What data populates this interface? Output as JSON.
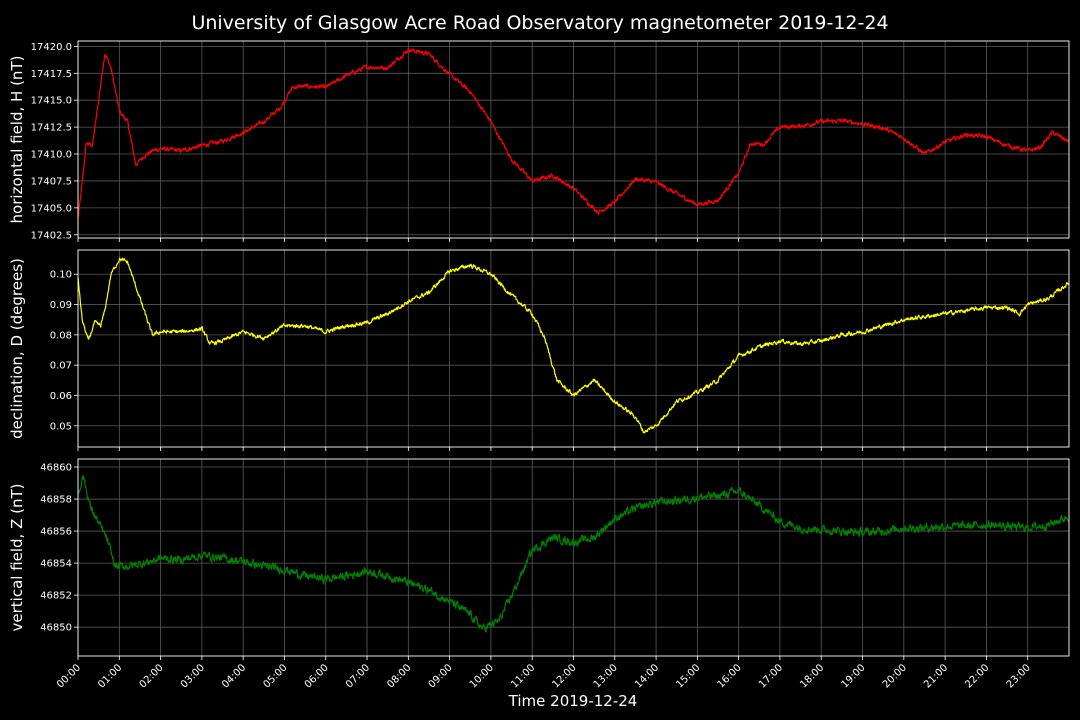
{
  "chart_data": {
    "type": "line",
    "title": "University of Glasgow Acre Road Observatory magnetometer 2019-12-24",
    "xlabel": "Time 2019-12-24",
    "x_tick_labels": [
      "00:00",
      "01:00",
      "02:00",
      "03:00",
      "04:00",
      "05:00",
      "06:00",
      "07:00",
      "08:00",
      "09:00",
      "10:00",
      "11:00",
      "12:00",
      "13:00",
      "14:00",
      "15:00",
      "16:00",
      "17:00",
      "18:00",
      "19:00",
      "20:00",
      "21:00",
      "22:00",
      "23:00"
    ],
    "xlim_hours": [
      0,
      24
    ],
    "grid": true,
    "panels": [
      {
        "ylabel": "horizontal field, H (nT)",
        "color": "#ff0000",
        "ylim": [
          17402.2,
          17420.5
        ],
        "y_ticks": [
          17402.5,
          17405.0,
          17407.5,
          17410.0,
          17412.5,
          17415.0,
          17417.5,
          17420.0
        ],
        "y_tick_labels": [
          "17402.5",
          "17405.0",
          "17407.5",
          "17410.0",
          "17412.5",
          "17415.0",
          "17417.5",
          "17420.0"
        ],
        "series": [
          {
            "hours": [
              0.0,
              0.08,
              0.2,
              0.35,
              0.5,
              0.65,
              0.8,
              1.0,
              1.2,
              1.4,
              1.6,
              1.8,
              2.0,
              2.5,
              3.0,
              3.5,
              4.0,
              4.5,
              4.9,
              5.2,
              5.5,
              6.0,
              6.5,
              7.0,
              7.5,
              8.0,
              8.5,
              9.0,
              9.5,
              10.0,
              10.5,
              11.0,
              11.5,
              12.0,
              12.3,
              12.6,
              13.0,
              13.5,
              14.0,
              14.5,
              15.0,
              15.5,
              16.0,
              16.3,
              16.6,
              17.0,
              17.5,
              18.0,
              18.5,
              19.0,
              19.5,
              20.0,
              20.5,
              21.0,
              21.5,
              22.0,
              22.5,
              23.0,
              23.3,
              23.6,
              23.98
            ],
            "values": [
              17404.0,
              17406.5,
              17411.0,
              17410.8,
              17415.0,
              17419.4,
              17418.0,
              17414.0,
              17413.0,
              17409.0,
              17409.8,
              17410.3,
              17410.5,
              17410.3,
              17410.8,
              17411.2,
              17412.0,
              17413.0,
              17414.3,
              17416.2,
              17416.3,
              17416.2,
              17417.3,
              17418.1,
              17418.0,
              17419.7,
              17419.3,
              17417.4,
              17415.8,
              17413.0,
              17409.5,
              17407.5,
              17408.0,
              17406.8,
              17405.7,
              17404.6,
              17405.5,
              17407.7,
              17407.4,
              17406.3,
              17405.3,
              17405.7,
              17408.2,
              17411.0,
              17410.9,
              17412.5,
              17412.6,
              17413.0,
              17413.1,
              17412.8,
              17412.4,
              17411.5,
              17410.0,
              17411.1,
              17411.8,
              17411.6,
              17410.8,
              17410.3,
              17410.6,
              17412.0,
              17411.2
            ],
            "noise": 0.35
          }
        ]
      },
      {
        "ylabel": "declination, D (degrees)",
        "color": "#ffff00",
        "ylim": [
          0.043,
          0.108
        ],
        "y_ticks": [
          0.05,
          0.06,
          0.07,
          0.08,
          0.09,
          0.1
        ],
        "y_tick_labels": [
          "0.05",
          "0.06",
          "0.07",
          "0.08",
          "0.09",
          "0.10"
        ],
        "series": [
          {
            "hours": [
              0.0,
              0.1,
              0.25,
              0.4,
              0.55,
              0.65,
              0.8,
              1.0,
              1.2,
              1.4,
              1.6,
              1.8,
              2.0,
              2.5,
              3.0,
              3.2,
              3.5,
              4.0,
              4.5,
              5.0,
              5.5,
              6.0,
              6.5,
              7.0,
              7.5,
              8.0,
              8.5,
              9.0,
              9.5,
              10.0,
              10.5,
              11.0,
              11.3,
              11.6,
              12.0,
              12.5,
              13.0,
              13.5,
              13.7,
              14.0,
              14.5,
              15.0,
              15.5,
              16.0,
              16.5,
              17.0,
              17.5,
              18.0,
              18.5,
              19.0,
              19.5,
              20.0,
              20.5,
              21.0,
              21.5,
              22.0,
              22.5,
              22.8,
              23.0,
              23.5,
              23.98
            ],
            "values": [
              0.099,
              0.085,
              0.078,
              0.084,
              0.083,
              0.088,
              0.1,
              0.105,
              0.104,
              0.096,
              0.088,
              0.08,
              0.081,
              0.081,
              0.082,
              0.077,
              0.078,
              0.081,
              0.079,
              0.083,
              0.083,
              0.081,
              0.083,
              0.084,
              0.087,
              0.091,
              0.094,
              0.101,
              0.103,
              0.1,
              0.093,
              0.087,
              0.079,
              0.065,
              0.06,
              0.065,
              0.058,
              0.053,
              0.048,
              0.05,
              0.058,
              0.061,
              0.065,
              0.073,
              0.076,
              0.078,
              0.077,
              0.078,
              0.08,
              0.081,
              0.083,
              0.085,
              0.086,
              0.087,
              0.088,
              0.089,
              0.089,
              0.087,
              0.09,
              0.092,
              0.097
            ],
            "noise": 0.0012
          }
        ]
      },
      {
        "ylabel": "vertical field, Z (nT)",
        "color": "#008000",
        "ylim": [
          46848.2,
          46860.5
        ],
        "y_ticks": [
          46850,
          46852,
          46854,
          46856,
          46858,
          46860
        ],
        "y_tick_labels": [
          "46850",
          "46852",
          "46854",
          "46856",
          "46858",
          "46860"
        ],
        "series": [
          {
            "hours": [
              0.0,
              0.12,
              0.3,
              0.5,
              0.7,
              0.9,
              1.2,
              1.6,
              2.0,
              2.5,
              3.0,
              3.5,
              4.0,
              4.5,
              5.0,
              5.5,
              6.0,
              6.5,
              7.0,
              7.5,
              8.0,
              8.5,
              9.0,
              9.5,
              9.8,
              10.2,
              10.6,
              11.0,
              11.5,
              12.0,
              12.5,
              13.0,
              13.5,
              14.0,
              14.5,
              15.0,
              15.5,
              16.0,
              16.5,
              17.0,
              17.5,
              18.0,
              18.5,
              19.0,
              19.5,
              20.0,
              20.5,
              21.0,
              21.5,
              22.0,
              22.5,
              23.0,
              23.5,
              23.98
            ],
            "values": [
              46858.2,
              46859.5,
              46857.5,
              46856.5,
              46855.5,
              46853.8,
              46853.8,
              46854.0,
              46854.3,
              46854.2,
              46854.5,
              46854.3,
              46854.1,
              46853.8,
              46853.6,
              46853.2,
              46853.0,
              46853.2,
              46853.5,
              46853.2,
              46852.8,
              46852.3,
              46851.6,
              46850.8,
              46849.9,
              46850.4,
              46852.5,
              46854.8,
              46855.6,
              46855.3,
              46855.6,
              46856.8,
              46857.4,
              46857.8,
              46857.9,
              46858.1,
              46858.2,
              46858.5,
              46857.6,
              46856.6,
              46856.2,
              46856.1,
              46856.0,
              46855.9,
              46856.0,
              46856.2,
              46856.2,
              46856.3,
              46856.3,
              46856.4,
              46856.3,
              46856.2,
              46856.4,
              46856.9
            ],
            "noise": 0.45
          }
        ]
      }
    ]
  }
}
